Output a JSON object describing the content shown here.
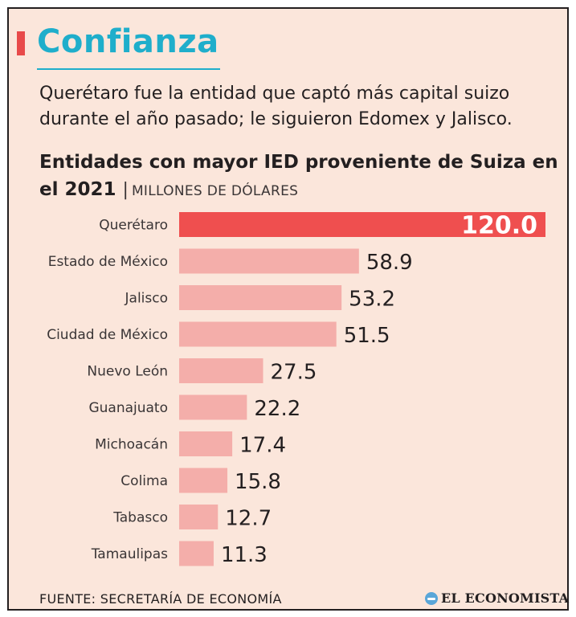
{
  "header": {
    "section_title": "Confianza",
    "subtitle": "Querétaro fue la entidad que captó más capital suizo durante el año pasado; le siguieron Edomex y Jalisco."
  },
  "colors": {
    "accent": "#e84a4a",
    "teal": "#1faecb",
    "bar_highlight": "#ef4f4f",
    "bar_default": "#f4aeaa",
    "text": "#231f20",
    "background": "#fbe6db"
  },
  "chart_data": {
    "type": "bar",
    "orientation": "horizontal",
    "title": "Entidades con mayor IED proveniente de Suiza en el 2021",
    "unit_label": "MILLONES DE DÓLARES",
    "categories": [
      "Querétaro",
      "Estado de México",
      "Jalisco",
      "Ciudad de México",
      "Nuevo León",
      "Guanajuato",
      "Michoacán",
      "Colima",
      "Tabasco",
      "Tamaulipas"
    ],
    "values": [
      120.0,
      58.9,
      53.2,
      51.5,
      27.5,
      22.2,
      17.4,
      15.8,
      12.7,
      11.3
    ],
    "labels": [
      "120.0",
      "58.9",
      "53.2",
      "51.5",
      "27.5",
      "22.2",
      "17.4",
      "15.8",
      "12.7",
      "11.3"
    ],
    "highlight_index": 0,
    "xlim": [
      0,
      120
    ],
    "grid": false,
    "legend": "none"
  },
  "footer": {
    "source": "FUENTE: SECRETARÍA DE ECONOMÍA",
    "brand": "EL ECONOMISTA"
  }
}
